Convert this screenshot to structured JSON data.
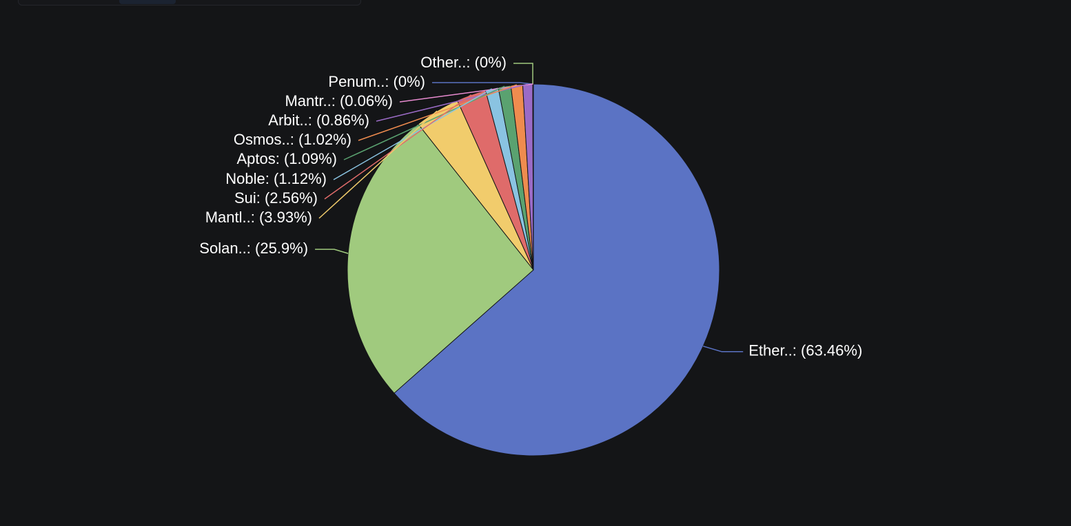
{
  "chart_data": {
    "type": "pie",
    "slices": [
      {
        "label": "Ether..: (63.46%)",
        "value": 63.46,
        "color": "#5b73c4"
      },
      {
        "label": "Solan..: (25.9%)",
        "value": 25.9,
        "color": "#a0ca7e"
      },
      {
        "label": "Mantl..: (3.93%)",
        "value": 3.93,
        "color": "#f1cc6c"
      },
      {
        "label": "Sui: (2.56%)",
        "value": 2.56,
        "color": "#df6b6a"
      },
      {
        "label": "Noble: (1.12%)",
        "value": 1.12,
        "color": "#8ac3e1"
      },
      {
        "label": "Aptos: (1.09%)",
        "value": 1.09,
        "color": "#5aa270"
      },
      {
        "label": "Osmos..: (1.02%)",
        "value": 1.02,
        "color": "#ef8c4f"
      },
      {
        "label": "Arbit..: (0.86%)",
        "value": 0.86,
        "color": "#9b6bc6"
      },
      {
        "label": "Mantr..: (0.06%)",
        "value": 0.06,
        "color": "#e88bd0"
      },
      {
        "label": "Penum..: (0%)",
        "value": 0,
        "color": "#5b73c4"
      },
      {
        "label": "Other..: (0%)",
        "value": 0,
        "color": "#a0ca7e"
      }
    ]
  }
}
